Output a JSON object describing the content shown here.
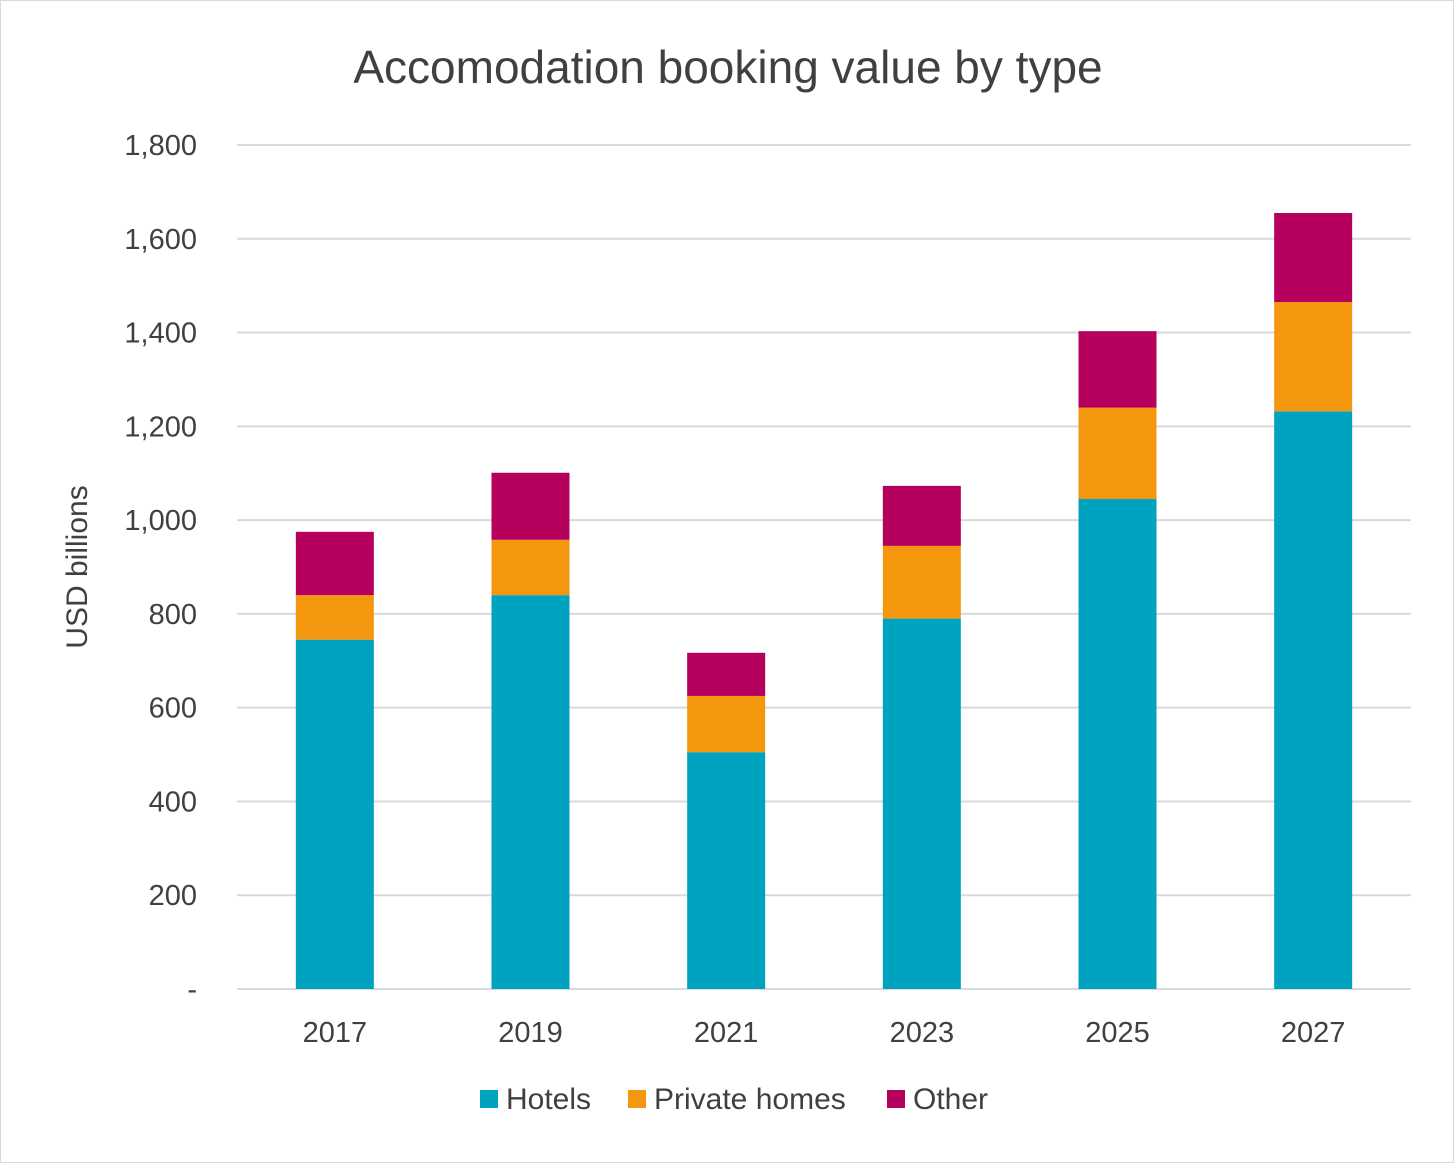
{
  "chart_data": {
    "type": "bar",
    "stacked": true,
    "title": "Accomodation booking value by type",
    "xlabel": "",
    "ylabel": "USD billions",
    "categories": [
      "2017",
      "2019",
      "2021",
      "2023",
      "2025",
      "2027"
    ],
    "series": [
      {
        "name": "Hotels",
        "color": "#00A3BF",
        "values": [
          745,
          840,
          505,
          790,
          1045,
          1232
        ]
      },
      {
        "name": "Private homes",
        "color": "#F5960F",
        "values": [
          95,
          118,
          120,
          155,
          195,
          233
        ]
      },
      {
        "name": "Other",
        "color": "#B5005D",
        "values": [
          135,
          143,
          92,
          128,
          163,
          190
        ]
      }
    ],
    "ylim": [
      0,
      1800
    ],
    "yticks": [
      {
        "value": 0,
        "label": "-"
      },
      {
        "value": 200,
        "label": "200"
      },
      {
        "value": 400,
        "label": "400"
      },
      {
        "value": 600,
        "label": "600"
      },
      {
        "value": 800,
        "label": "800"
      },
      {
        "value": 1000,
        "label": "1,000"
      },
      {
        "value": 1200,
        "label": "1,200"
      },
      {
        "value": 1400,
        "label": "1,400"
      },
      {
        "value": 1600,
        "label": "1,600"
      },
      {
        "value": 1800,
        "label": "1,800"
      }
    ],
    "grid": true,
    "legend_position": "bottom",
    "gridline_color": "#d9d9d9"
  }
}
